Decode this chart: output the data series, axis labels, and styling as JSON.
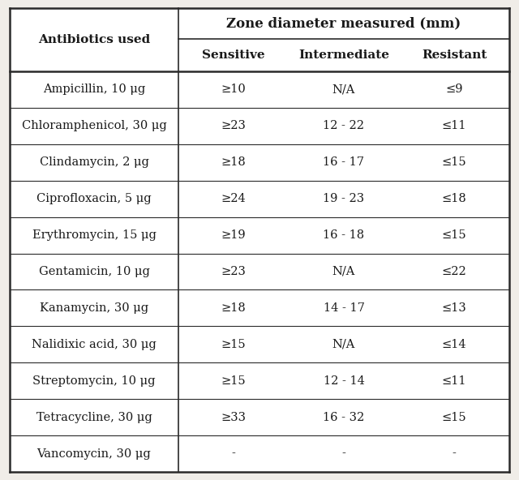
{
  "title": "Zone diameter measured (mm)",
  "col_header1": "Antibiotics used",
  "col_header2": "Sensitive",
  "col_header3": "Intermediate",
  "col_header4": "Resistant",
  "rows": [
    [
      "Ampicillin, 10 μg",
      "≥10",
      "N/A",
      "≤9"
    ],
    [
      "Chloramphenicol, 30 μg",
      "≥23",
      "12 - 22",
      "≤11"
    ],
    [
      "Clindamycin, 2 μg",
      "≥18",
      "16 - 17",
      "≤15"
    ],
    [
      "Ciprofloxacin, 5 μg",
      "≥24",
      "19 - 23",
      "≤18"
    ],
    [
      "Erythromycin, 15 μg",
      "≥19",
      "16 - 18",
      "≤15"
    ],
    [
      "Gentamicin, 10 μg",
      "≥23",
      "N/A",
      "≤22"
    ],
    [
      "Kanamycin, 30 μg",
      "≥18",
      "14 - 17",
      "≤13"
    ],
    [
      "Nalidixic acid, 30 μg",
      "≥15",
      "N/A",
      "≤14"
    ],
    [
      "Streptomycin, 10 μg",
      "≥15",
      "12 - 14",
      "≤11"
    ],
    [
      "Tetracycline, 30 μg",
      "≥33",
      "16 - 32",
      "≤15"
    ],
    [
      "Vancomycin, 30 μg",
      "-",
      "-",
      "-"
    ]
  ],
  "bg_color": "#f0ede8",
  "table_bg": "#ffffff",
  "border_color": "#2a2a2a",
  "text_color": "#1a1a1a",
  "font_size": 10.5,
  "header_font_size": 11,
  "title_font_size": 12,
  "fig_width": 6.4,
  "fig_height": 5.92,
  "dpi": 100
}
